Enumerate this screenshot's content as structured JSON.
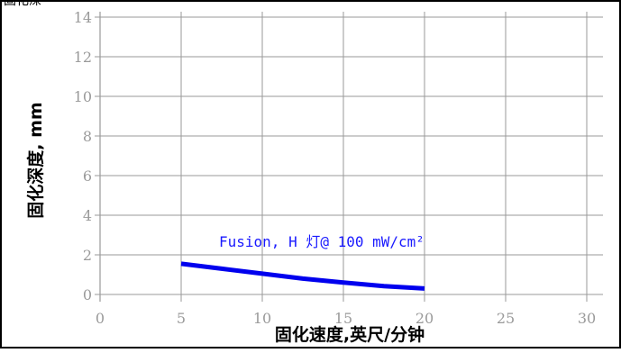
{
  "chart_data": {
    "type": "line",
    "title": "",
    "title_cut_text": "固化深",
    "xlabel": "固化速度,英尺/分钟",
    "ylabel": "固化深度, mm",
    "xlim": [
      0,
      30
    ],
    "ylim": [
      0,
      14
    ],
    "x_ticks": [
      "0",
      "5",
      "10",
      "15",
      "20",
      "25",
      "30"
    ],
    "y_ticks": [
      "0",
      "2",
      "4",
      "6",
      "8",
      "10",
      "12",
      "14"
    ],
    "grid": true,
    "series": [
      {
        "name": "Fusion,  H 灯@ 100 mW/cm²",
        "color": "#0000ee",
        "x": [
          5,
          7.5,
          10,
          12.5,
          15,
          17.5,
          20
        ],
        "y": [
          1.55,
          1.3,
          1.05,
          0.8,
          0.6,
          0.42,
          0.3
        ]
      }
    ],
    "annotation": "Fusion,  H 灯@ 100 mW/cm²"
  }
}
